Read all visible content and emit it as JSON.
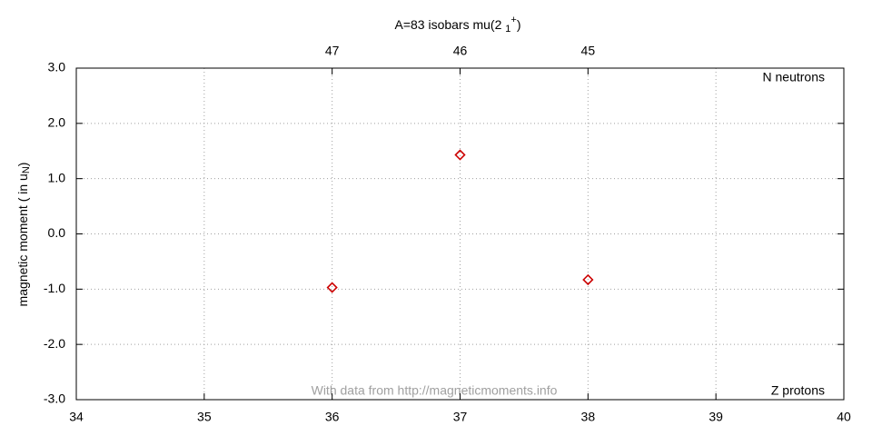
{
  "chart_data": {
    "type": "scatter",
    "title": {
      "main": "A=83 isobars mu(2 ",
      "sub": "1",
      "sup": "+",
      "end": ")"
    },
    "ylabel": {
      "main": "magnetic moment ( in u",
      "sub": "N",
      "end": ")"
    },
    "annotations": [
      "N neutrons",
      "Z protons",
      "With data from http://magneticmoments.info"
    ],
    "x": [
      36,
      37,
      38
    ],
    "values": [
      -0.97,
      1.43,
      -0.83
    ],
    "color": "#cc0000",
    "xlim": [
      34,
      40
    ],
    "xticks": [
      34,
      35,
      36,
      37,
      38,
      39,
      40
    ],
    "x2ticks": [
      {
        "value": 36,
        "label": "47"
      },
      {
        "value": 37,
        "label": "46"
      },
      {
        "value": 38,
        "label": "45"
      }
    ],
    "ylim": [
      -3,
      3
    ],
    "yticks": [
      {
        "value": 3,
        "label": "3.0"
      },
      {
        "value": 2,
        "label": "2.0"
      },
      {
        "value": 1,
        "label": "1.0"
      },
      {
        "value": 0,
        "label": "0.0"
      },
      {
        "value": -1,
        "label": "-1.0"
      },
      {
        "value": -2,
        "label": "-2.0"
      },
      {
        "value": -3,
        "label": "-3.0"
      }
    ],
    "grid": true
  }
}
